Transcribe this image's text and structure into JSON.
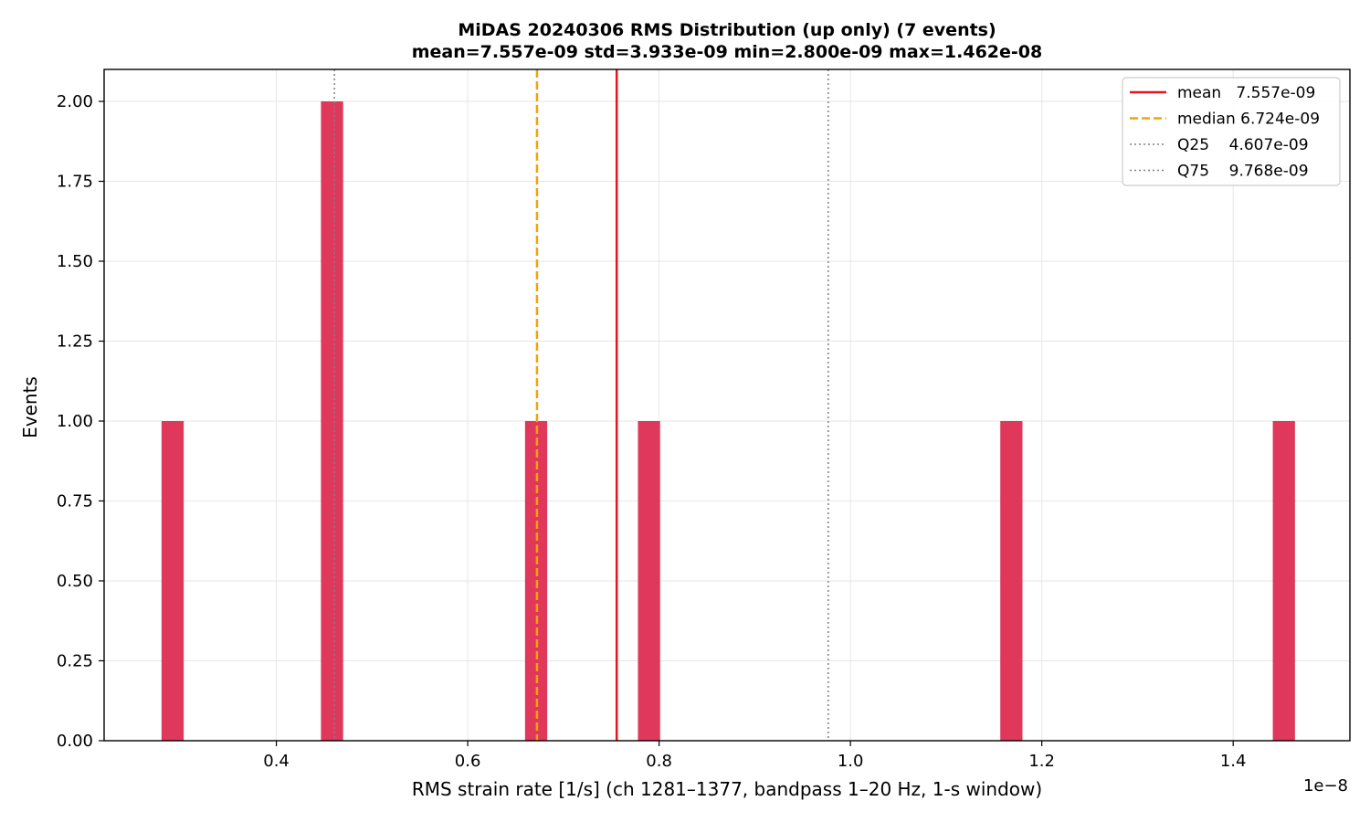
{
  "chart_data": {
    "type": "bar",
    "title_line1": "MiDAS 20240306  RMS Distribution  (up only)  (7 events)",
    "title_line2": "mean=7.557e-09  std=3.933e-09  min=2.800e-09  max=1.462e-08",
    "xlabel": "RMS strain rate [1/s]  (ch 1281–1377, bandpass 1–20 Hz, 1-s window)",
    "ylabel": "Events",
    "x_offset_label": "1e−8",
    "x_scale_note": "x values in units of 1e-8",
    "xlim": [
      0.22,
      1.522
    ],
    "ylim": [
      0,
      2.1
    ],
    "bin_width": 0.02318,
    "bars": [
      {
        "x": 0.28,
        "count": 1
      },
      {
        "x": 0.4466,
        "count": 2
      },
      {
        "x": 0.6599,
        "count": 1
      },
      {
        "x": 0.7779,
        "count": 1
      },
      {
        "x": 1.1566,
        "count": 1
      },
      {
        "x": 1.4414,
        "count": 1
      }
    ],
    "xticks": [
      0.4,
      0.6,
      0.8,
      1.0,
      1.2,
      1.4
    ],
    "xtick_labels": [
      "0.4",
      "0.6",
      "0.8",
      "1.0",
      "1.2",
      "1.4"
    ],
    "yticks": [
      0,
      0.25,
      0.5,
      0.75,
      1.0,
      1.25,
      1.5,
      1.75,
      2.0
    ],
    "ytick_labels": [
      "0.00",
      "0.25",
      "0.50",
      "0.75",
      "1.00",
      "1.25",
      "1.50",
      "1.75",
      "2.00"
    ],
    "grid": true,
    "bar_color": "#e0385b",
    "vlines": [
      {
        "name": "mean",
        "x": 0.7557,
        "color": "#e8141b",
        "style": "solid"
      },
      {
        "name": "median",
        "x": 0.6724,
        "color": "#f5a20a",
        "style": "dashed"
      },
      {
        "name": "Q25",
        "x": 0.4607,
        "color": "#808080",
        "style": "dotted"
      },
      {
        "name": "Q75",
        "x": 0.9768,
        "color": "#808080",
        "style": "dotted"
      }
    ],
    "legend_position": "top-right",
    "legend": [
      {
        "label": "mean   7.557e-09",
        "color": "#e8141b",
        "style": "solid"
      },
      {
        "label": "median 6.724e-09",
        "color": "#f5a20a",
        "style": "dashed"
      },
      {
        "label": "Q25    4.607e-09",
        "color": "#808080",
        "style": "dotted"
      },
      {
        "label": "Q75    9.768e-09",
        "color": "#808080",
        "style": "dotted"
      }
    ]
  }
}
